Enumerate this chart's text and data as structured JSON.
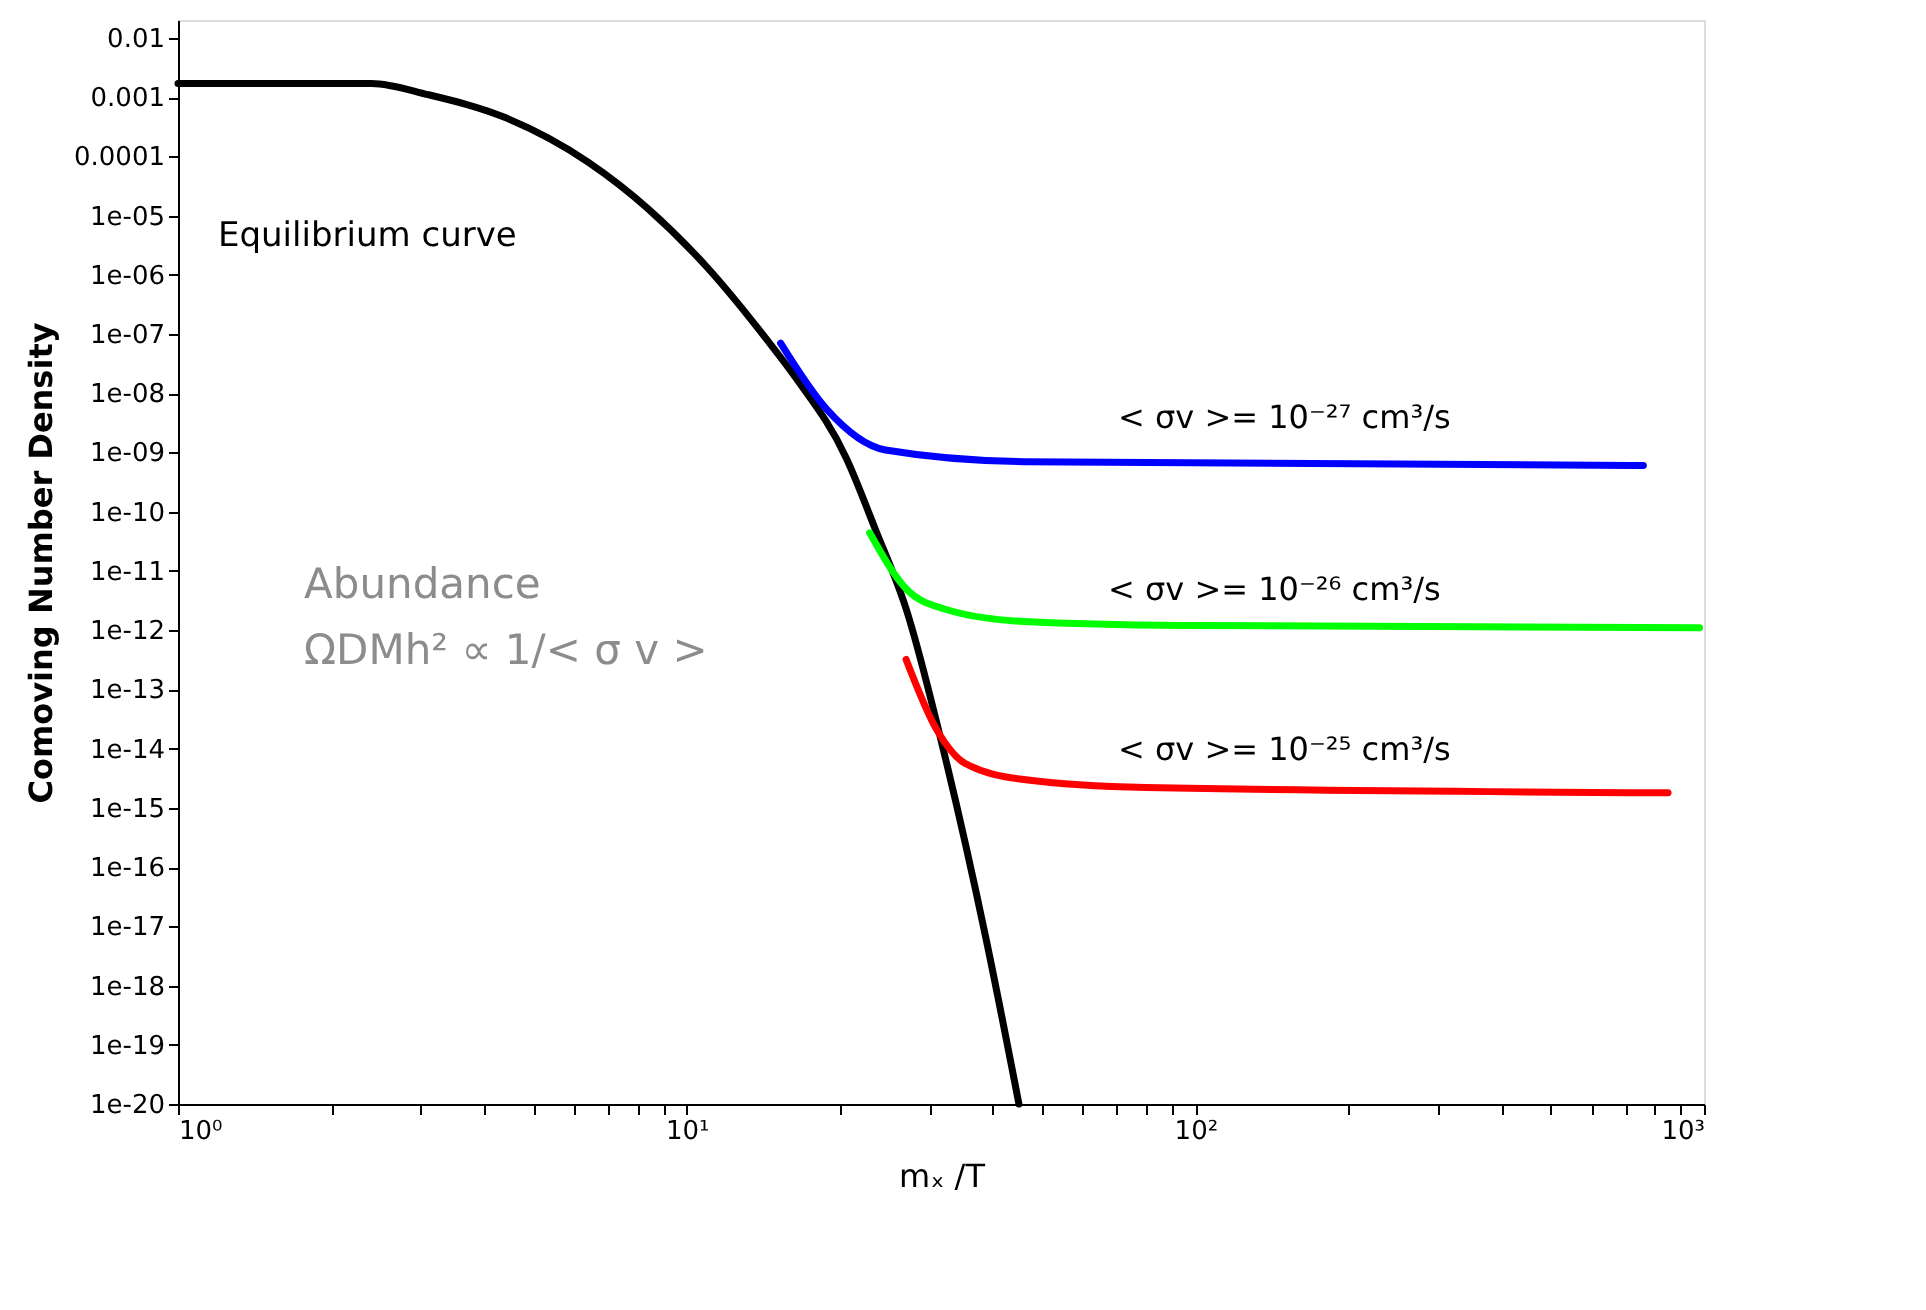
{
  "chart_data": {
    "type": "line",
    "xlabel": "mₓ /T",
    "ylabel": "Comoving Number Density",
    "log": "xy",
    "grid": false,
    "marker": "none",
    "line_style": "solid",
    "xlim": [
      1,
      1000
    ],
    "ylim": [
      1e-20,
      0.02
    ],
    "xticks": [
      {
        "value": 1,
        "label": "10⁰"
      },
      {
        "value": 2,
        "label": null
      },
      {
        "value": 3,
        "label": null
      },
      {
        "value": 4,
        "label": null
      },
      {
        "value": 5,
        "label": null
      },
      {
        "value": 6,
        "label": null
      },
      {
        "value": 7,
        "label": null
      },
      {
        "value": 8,
        "label": null
      },
      {
        "value": 9,
        "label": null
      },
      {
        "value": 10,
        "label": "10¹"
      },
      {
        "value": 20,
        "label": null
      },
      {
        "value": 30,
        "label": null
      },
      {
        "value": 40,
        "label": null
      },
      {
        "value": 50,
        "label": null
      },
      {
        "value": 60,
        "label": null
      },
      {
        "value": 70,
        "label": null
      },
      {
        "value": 80,
        "label": null
      },
      {
        "value": 90,
        "label": null
      },
      {
        "value": 100,
        "label": "10²"
      },
      {
        "value": 200,
        "label": null
      },
      {
        "value": 300,
        "label": null
      },
      {
        "value": 400,
        "label": null
      },
      {
        "value": 500,
        "label": null
      },
      {
        "value": 600,
        "label": null
      },
      {
        "value": 700,
        "label": null
      },
      {
        "value": 800,
        "label": null
      },
      {
        "value": 900,
        "label": null
      },
      {
        "value": 1000,
        "label": "10³"
      }
    ],
    "yticks": [
      {
        "value": 0.01,
        "label": "0.01"
      },
      {
        "value": 0.001,
        "label": "0.001"
      },
      {
        "value": 0.0001,
        "label": "0.0001"
      },
      {
        "value": 1e-05,
        "label": "1e-05"
      },
      {
        "value": 1e-06,
        "label": "1e-06"
      },
      {
        "value": 1e-07,
        "label": "1e-07"
      },
      {
        "value": 1e-08,
        "label": "1e-08"
      },
      {
        "value": 1e-09,
        "label": "1e-09"
      },
      {
        "value": 1e-10,
        "label": "1e-10"
      },
      {
        "value": 1e-11,
        "label": "1e-11"
      },
      {
        "value": 1e-12,
        "label": "1e-12"
      },
      {
        "value": 1e-13,
        "label": "1e-13"
      },
      {
        "value": 1e-14,
        "label": "1e-14"
      },
      {
        "value": 1e-15,
        "label": "1e-15"
      },
      {
        "value": 1e-16,
        "label": "1e-16"
      },
      {
        "value": 1e-17,
        "label": "1e-17"
      },
      {
        "value": 1e-18,
        "label": "1e-18"
      },
      {
        "value": 1e-19,
        "label": "1e-19"
      },
      {
        "value": 1e-20,
        "label": "1e-20"
      }
    ],
    "series": [
      {
        "color": "#000000",
        "x": [
          1,
          2.4,
          3.1,
          4.4,
          6.4,
          8.4,
          11,
          14.3,
          16.4,
          20.6,
          23.5,
          27,
          32.3,
          38.8,
          45
        ],
        "values": [
          0.0017,
          0.0017,
          0.0011,
          0.00045,
          8e-05,
          1.3e-05,
          1.3e-06,
          8.5e-08,
          1.8e-08,
          8e-10,
          5e-11,
          2.3e-12,
          6.6e-15,
          6e-18,
          1e-20
        ]
      },
      {
        "color": "#0000ff",
        "x": [
          15.3,
          18.8,
          24.6,
          46,
          760
        ],
        "values": [
          7e-08,
          5.5e-09,
          1.1e-09,
          7e-10,
          6e-10
        ]
      },
      {
        "color": "#00ff00",
        "x": [
          22.9,
          27,
          32,
          46,
          95,
          980
        ],
        "values": [
          4.4e-11,
          5e-12,
          2.3e-12,
          1.4e-12,
          1.2e-12,
          1.1e-12
        ]
      },
      {
        "color": "#ff0000",
        "x": [
          27,
          31,
          35.3,
          46,
          80,
          850
        ],
        "values": [
          3.2e-13,
          2.1e-14,
          5.6e-15,
          3e-15,
          2.2e-15,
          1.8e-15
        ]
      }
    ],
    "annotations": [
      "Equilibrium curve",
      "< σv >= 10⁻²⁷ cm³/s",
      "< σv >= 10⁻²⁶ cm³/s",
      "< σv >= 10⁻²⁵ cm³/s",
      "Abundance",
      "ΩDMh² ∝ 1/< σ v >"
    ]
  }
}
